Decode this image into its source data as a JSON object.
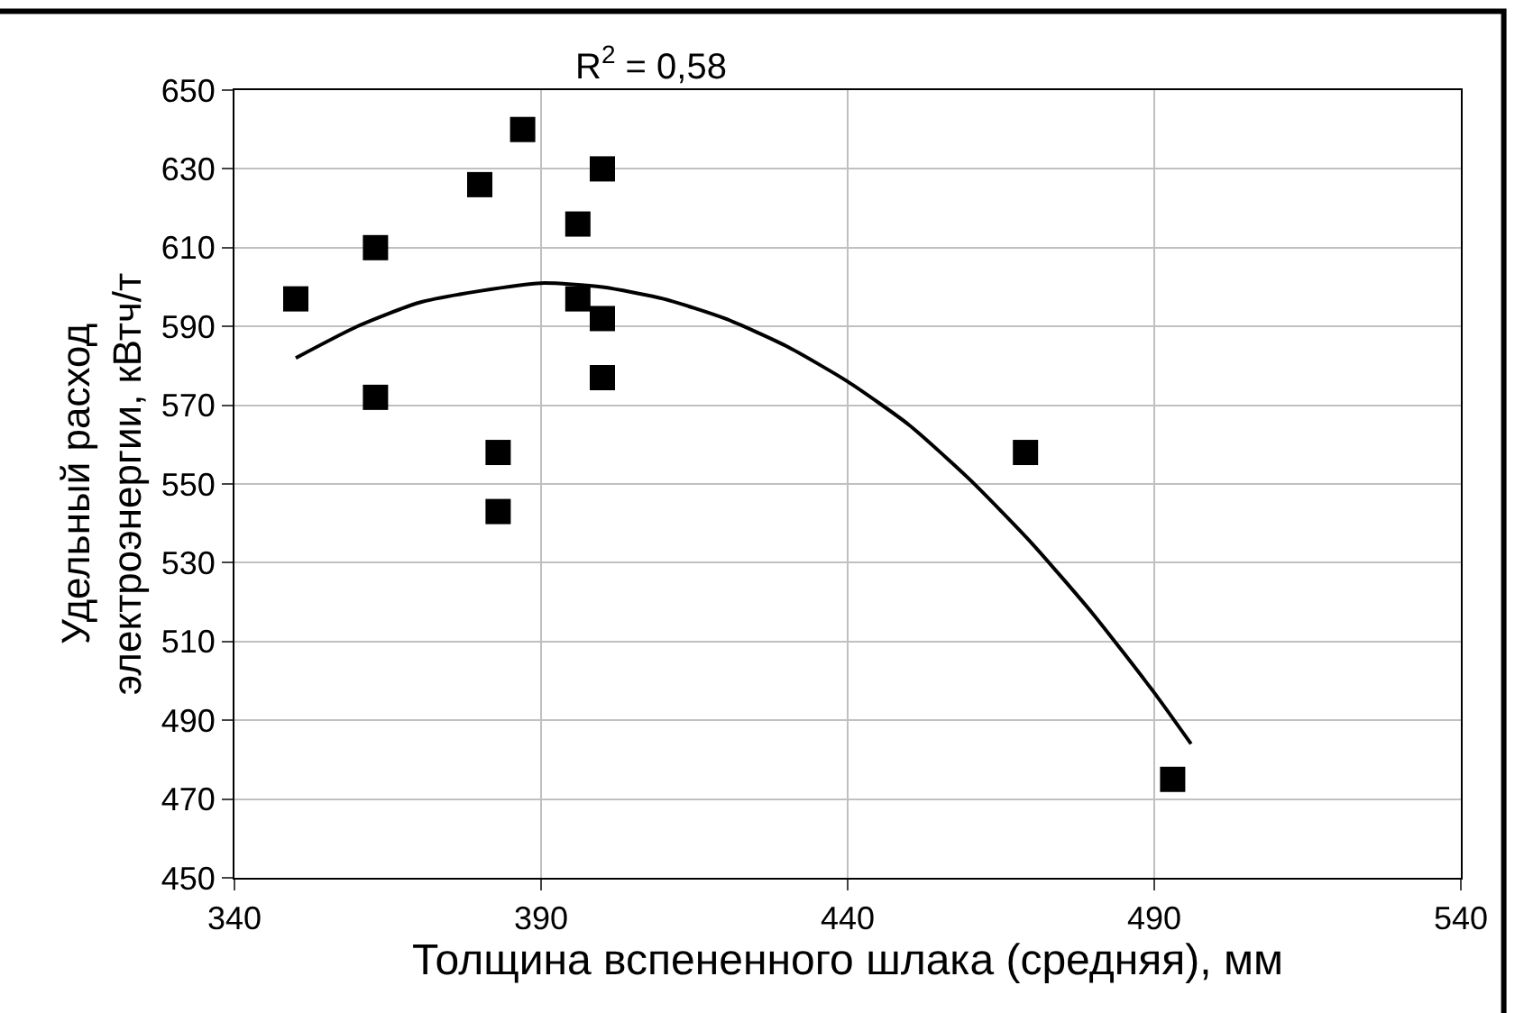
{
  "chart_data": {
    "type": "scatter",
    "xlabel": "Толщина вспененного шлака (средняя), мм",
    "ylabel": "Удельный расход\nэлектроэнергии, кВтч/т",
    "annotations": [
      "R$^{2}$ = 0,58"
    ],
    "xlim": [
      340,
      540
    ],
    "xticks": [
      340,
      390,
      440,
      490,
      540
    ],
    "ylim": [
      450,
      650
    ],
    "yticks": [
      450,
      470,
      490,
      510,
      530,
      550,
      570,
      590,
      610,
      630,
      650
    ],
    "grid": true,
    "marker": "square",
    "series": [
      {
        "color": "#000000",
        "x": [
          350,
          363,
          363,
          380,
          387,
          383,
          383,
          396,
          396,
          400,
          400,
          400,
          469,
          493
        ],
        "values": [
          597,
          610,
          572,
          626,
          640,
          558,
          543,
          616,
          597,
          630,
          592,
          577,
          558,
          475
        ]
      },
      {
        "type": "line",
        "marker": "none",
        "color": "#000000",
        "x": [
          350,
          360,
          370,
          380,
          390,
          400,
          410,
          420,
          430,
          440,
          450,
          460,
          470,
          480,
          490,
          496
        ],
        "values": [
          582,
          590,
          596,
          599,
          601,
          600,
          597,
          592,
          585,
          576,
          565,
          551,
          535,
          517,
          497,
          484
        ]
      }
    ]
  }
}
